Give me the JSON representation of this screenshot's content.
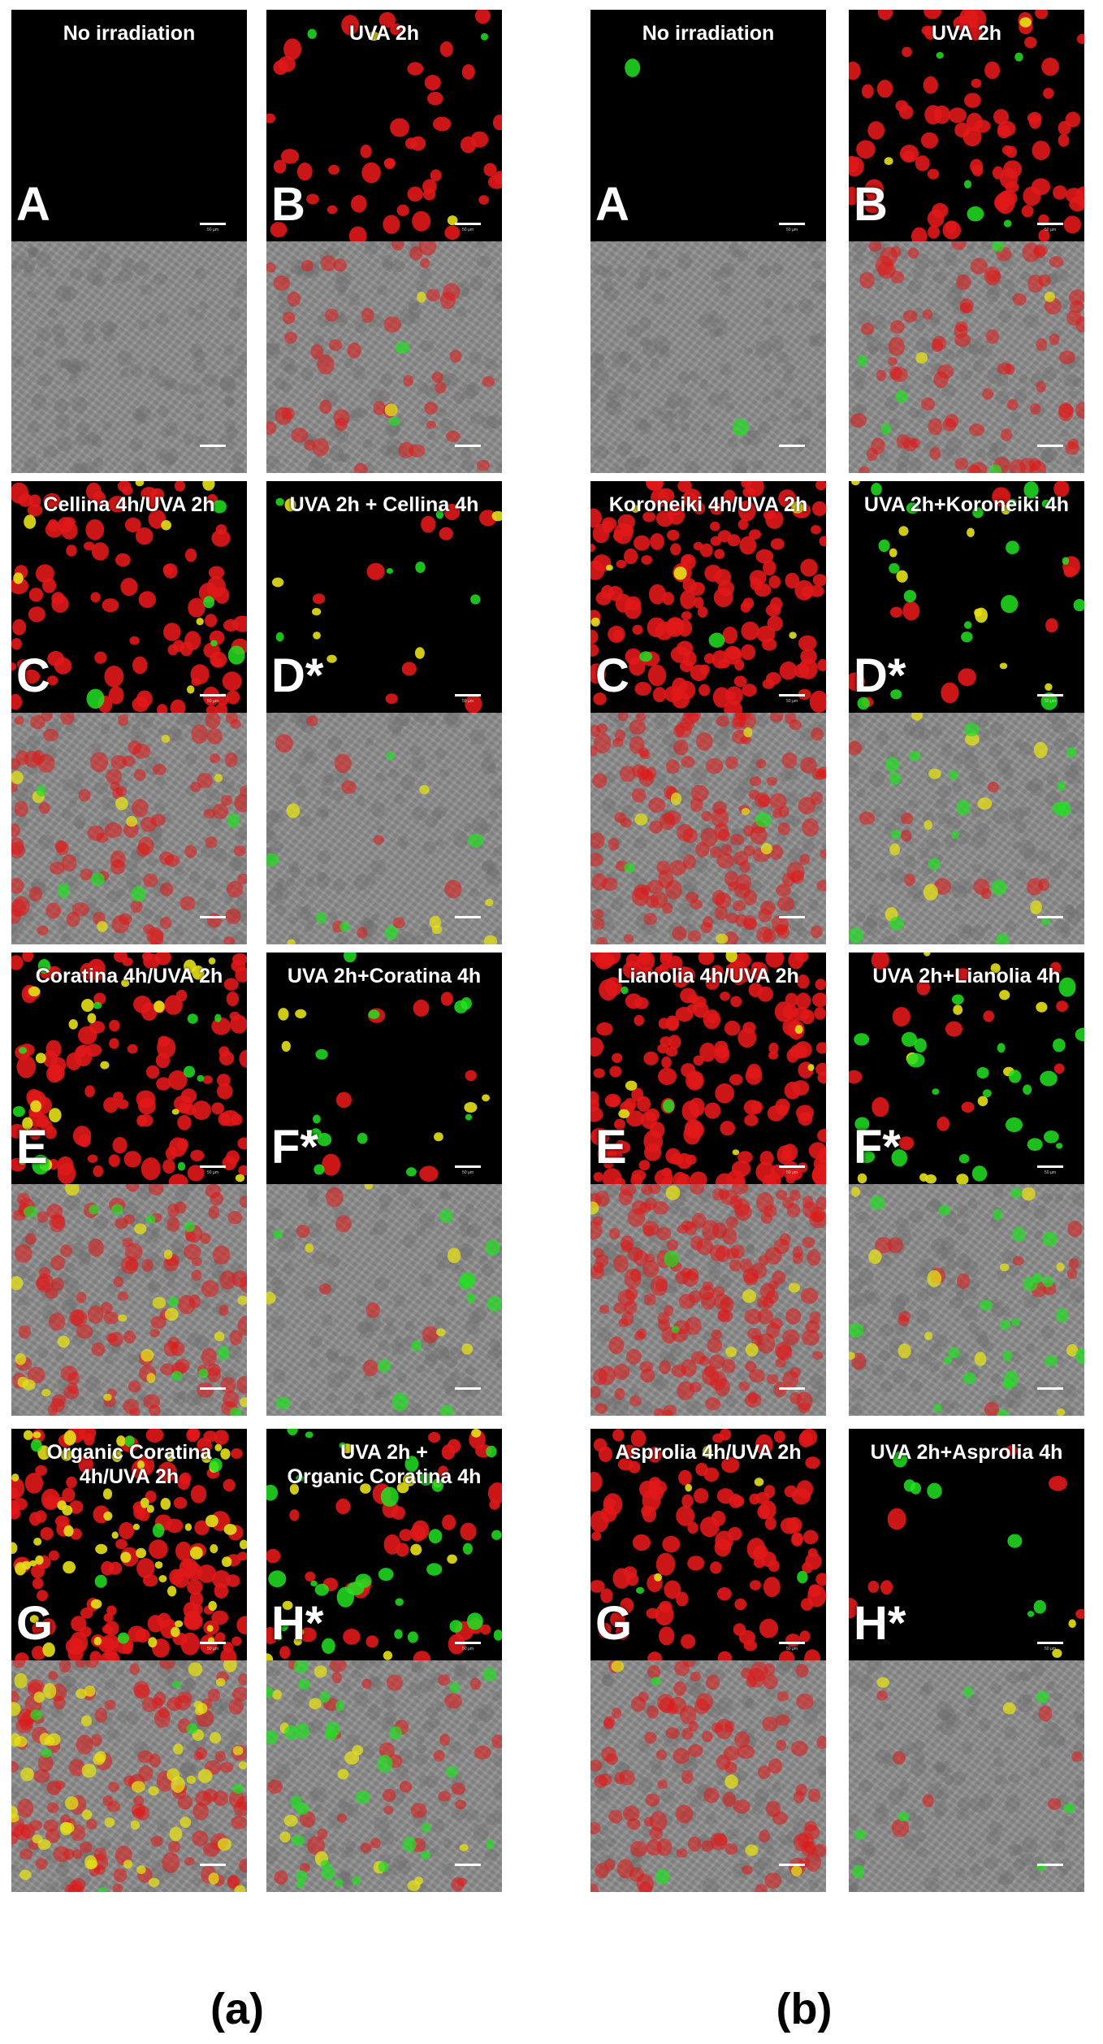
{
  "figure": {
    "group_labels": [
      "(a)",
      "(b)"
    ],
    "scale_bar_label": "50 µm",
    "colors": {
      "fluorescence_background": "#000000",
      "red_stain": "#e01818",
      "green_stain": "#22e022",
      "yellow_overlap": "#e6e018",
      "brightfield": "#8e8e8e"
    },
    "panels": [
      {
        "group": "a",
        "title": "No irradiation",
        "letter": "A",
        "red": 0,
        "green": 0,
        "yellow": 0
      },
      {
        "group": "a",
        "title": "UVA 2h",
        "letter": "B",
        "red": 0.25,
        "green": 0.02,
        "yellow": 0.02
      },
      {
        "group": "a",
        "title": "Cellina 4h/UVA 2h",
        "letter": "C",
        "red": 0.5,
        "green": 0.04,
        "yellow": 0.06
      },
      {
        "group": "a",
        "title": "UVA 2h + Cellina 4h",
        "letter": "D*",
        "red": 0.05,
        "green": 0.05,
        "yellow": 0.06
      },
      {
        "group": "a",
        "title": "Coratina 4h/UVA 2h",
        "letter": "E",
        "red": 0.6,
        "green": 0.08,
        "yellow": 0.15
      },
      {
        "group": "a",
        "title": "UVA 2h+Coratina 4h",
        "letter": "F*",
        "red": 0.04,
        "green": 0.1,
        "yellow": 0.05
      },
      {
        "group": "a",
        "title": "Organic Coratina\n4h/UVA 2h",
        "letter": "G",
        "red": 0.7,
        "green": 0.05,
        "yellow": 0.45
      },
      {
        "group": "a",
        "title": "UVA 2h +\nOrganic Coratina 4h",
        "letter": "H*",
        "red": 0.2,
        "green": 0.25,
        "yellow": 0.12
      },
      {
        "group": "b",
        "title": "No irradiation",
        "letter": "A",
        "red": 0,
        "green": 0.01,
        "yellow": 0
      },
      {
        "group": "b",
        "title": "UVA 2h",
        "letter": "B",
        "red": 0.45,
        "green": 0.04,
        "yellow": 0.02
      },
      {
        "group": "b",
        "title": "Koroneiki 4h/UVA 2h",
        "letter": "C",
        "red": 0.85,
        "green": 0.02,
        "yellow": 0.05
      },
      {
        "group": "b",
        "title": "UVA 2h+Koroneiki 4h",
        "letter": "D*",
        "red": 0.06,
        "green": 0.15,
        "yellow": 0.08
      },
      {
        "group": "b",
        "title": "Lianolia 4h/UVA 2h",
        "letter": "E",
        "red": 1,
        "green": 0.02,
        "yellow": 0.05
      },
      {
        "group": "b",
        "title": "UVA 2h+Lianolia 4h",
        "letter": "F*",
        "red": 0.08,
        "green": 0.2,
        "yellow": 0.1
      },
      {
        "group": "b",
        "title": "Asprolia 4h/UVA 2h",
        "letter": "G",
        "red": 0.6,
        "green": 0.02,
        "yellow": 0.03
      },
      {
        "group": "b",
        "title": "UVA 2h+Asprolia 4h",
        "letter": "H*",
        "red": 0.04,
        "green": 0.06,
        "yellow": 0.02
      }
    ]
  }
}
